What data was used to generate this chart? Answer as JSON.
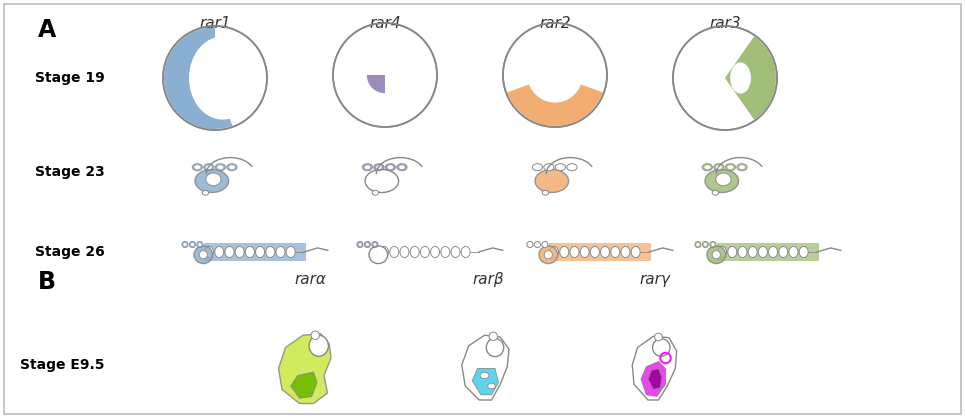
{
  "title_A": "A",
  "title_B": "B",
  "col_headers_A": [
    "rar1",
    "rar4",
    "rar2",
    "rar3"
  ],
  "col_headers_B": [
    "rarα",
    "rarβ",
    "rarγ"
  ],
  "row_labels_A": [
    "Stage 19",
    "Stage 23",
    "Stage 26"
  ],
  "row_label_B": "Stage E9.5",
  "colors": {
    "rar1": "#8AAFD0",
    "rar4": "#9B8BBF",
    "rar2": "#F2AE72",
    "rar3": "#A0BE78",
    "rara_light": "#C8E840",
    "rara_dark": "#6DB800",
    "rarb": "#44CCEE",
    "rarg_bright": "#EE22EE",
    "rarg_dark": "#990099",
    "outline": "#888888",
    "background": "#ffffff"
  },
  "figsize": [
    9.65,
    4.18
  ],
  "dpi": 100
}
